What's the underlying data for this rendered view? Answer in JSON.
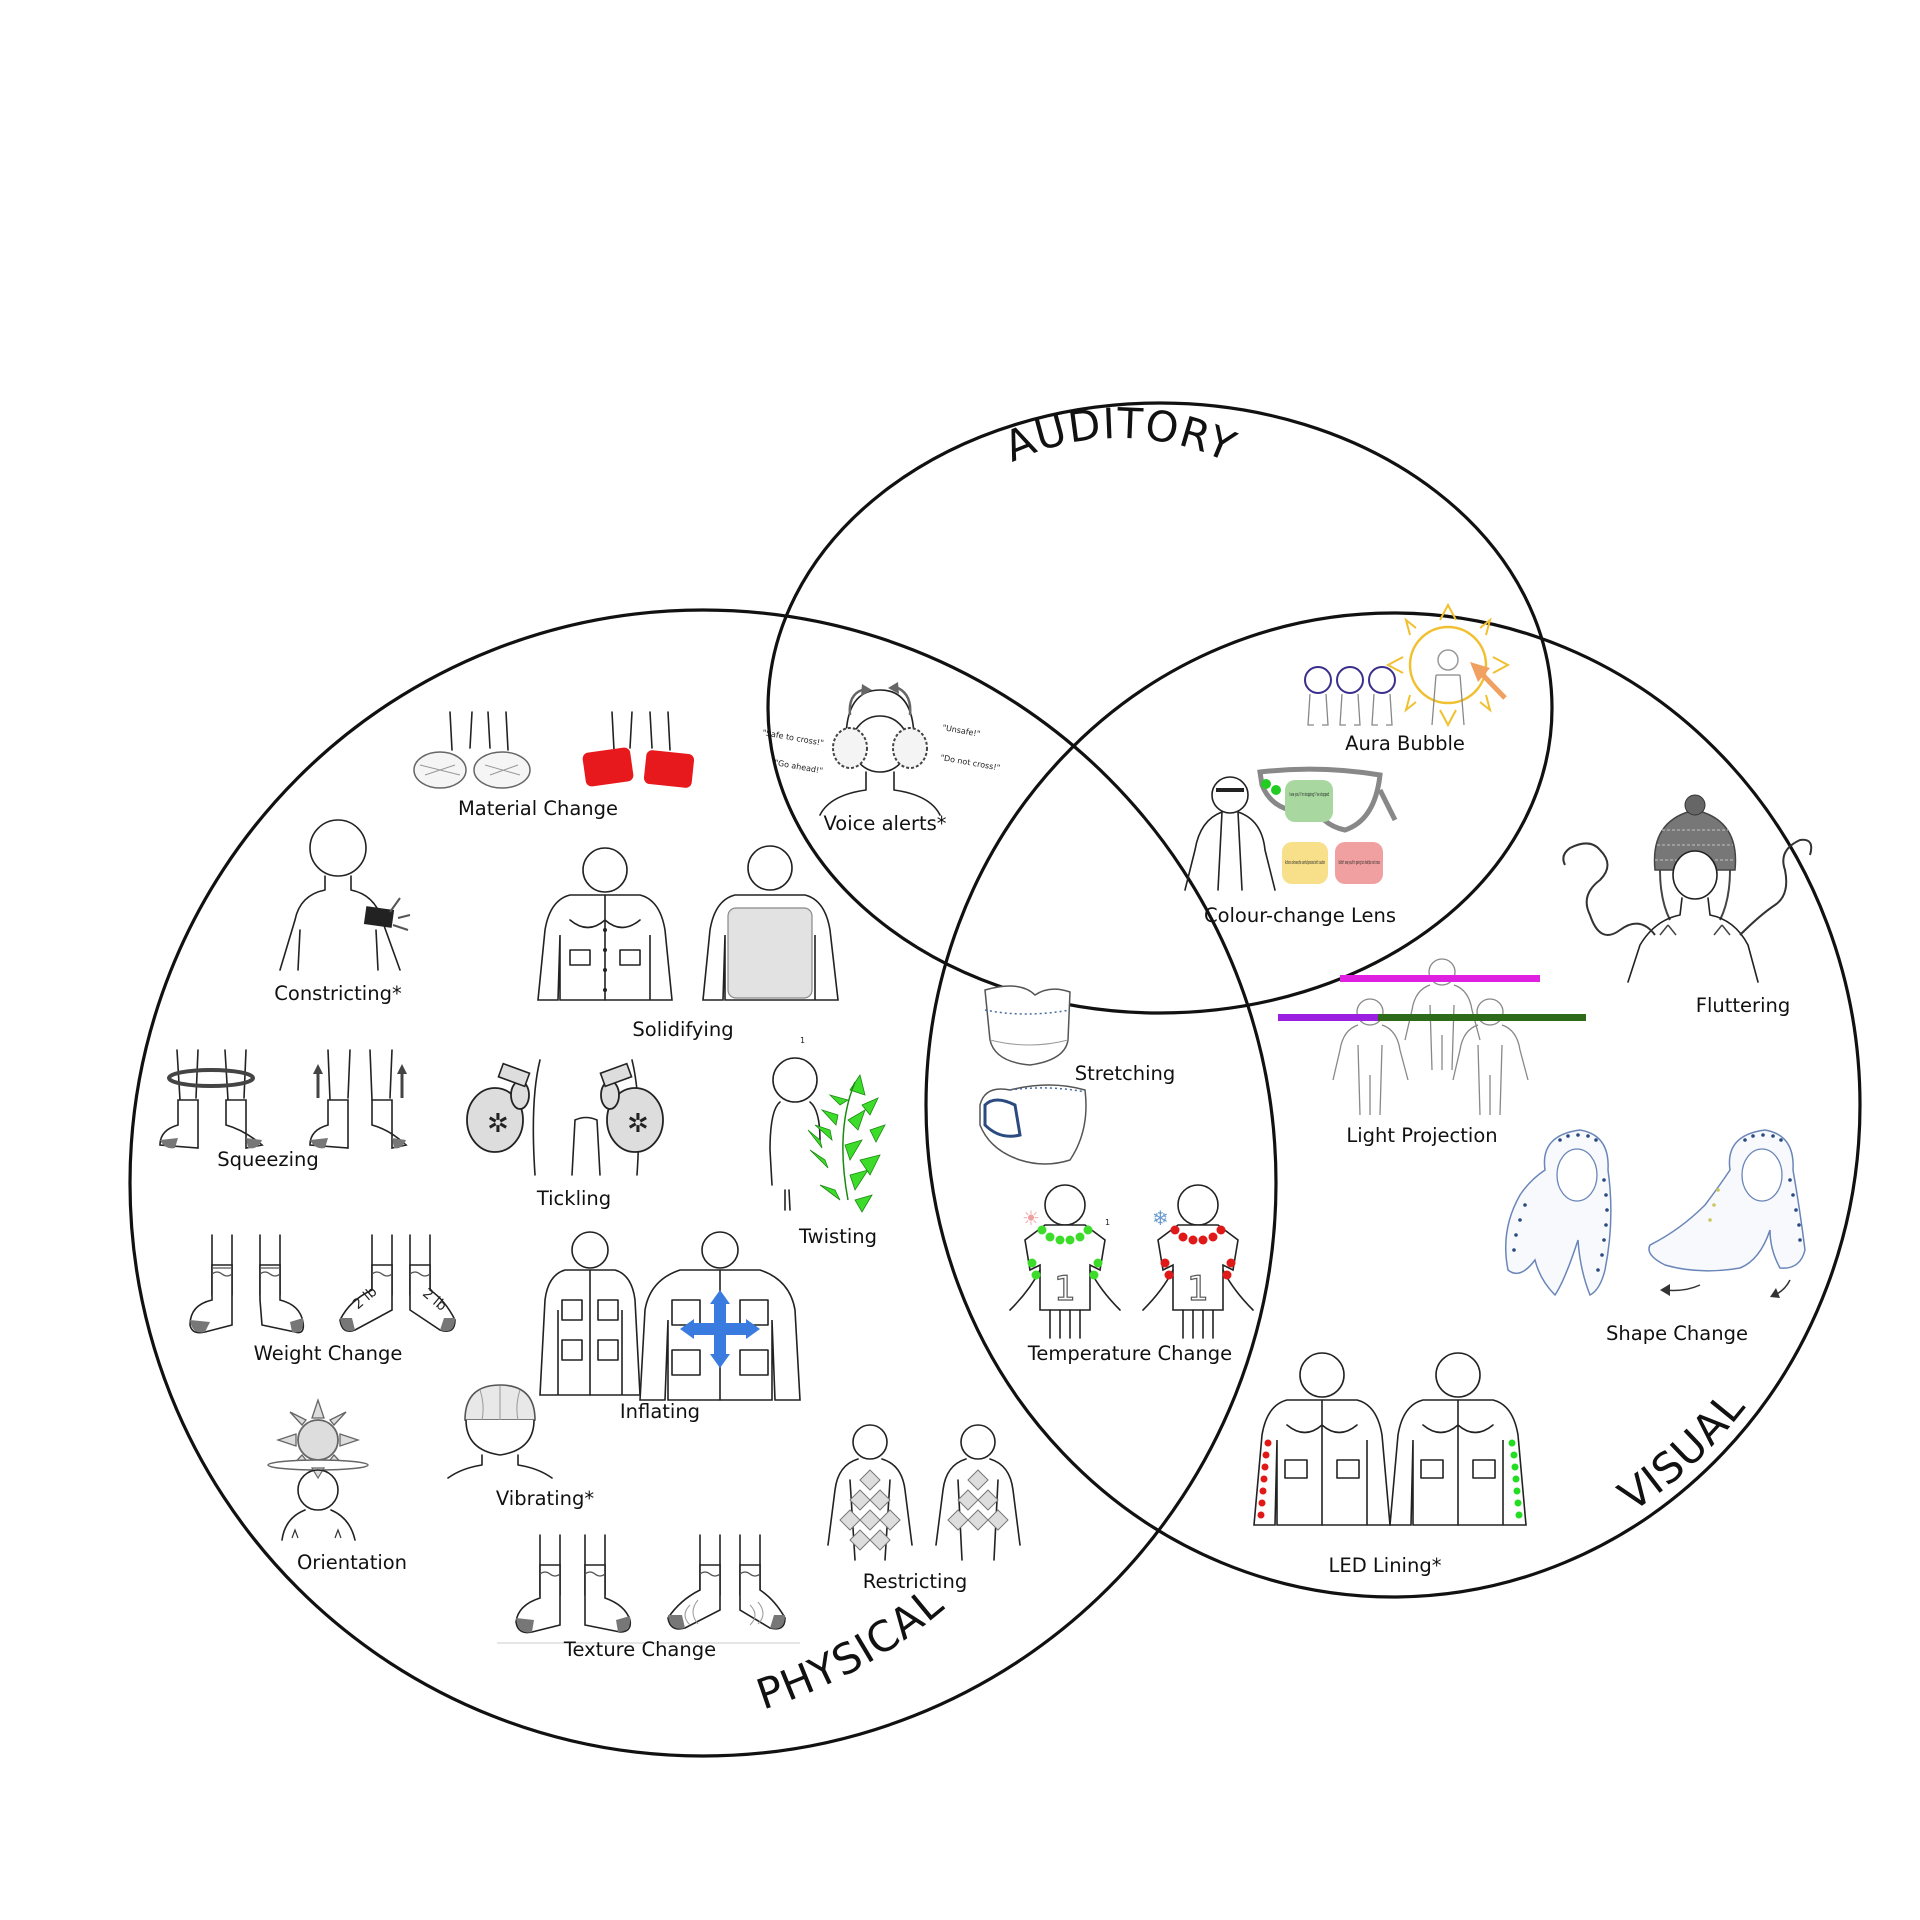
{
  "diagram": {
    "regions": {
      "auditory": "AUDITORY",
      "visual": "VISUAL",
      "physical": "PHYSICAL"
    },
    "items": {
      "voice_alerts": "Voice alerts*",
      "aura_bubble": "Aura Bubble",
      "colour_change_lens": "Colour-change Lens",
      "material_change": "Material Change",
      "constricting": "Constricting*",
      "solidifying": "Solidifying",
      "squeezing": "Squeezing",
      "tickling": "Tickling",
      "twisting": "Twisting",
      "weight_change": "Weight Change",
      "inflating": "Inflating",
      "orientation": "Orientation",
      "vibrating": "Vibrating*",
      "texture_change": "Texture Change",
      "restricting": "Restricting",
      "stretching": "Stretching",
      "temperature_change": "Temperature Change",
      "light_projection": "Light Projection",
      "fluttering": "Fluttering",
      "shape_change": "Shape Change",
      "led_lining": "LED Lining*"
    },
    "voice_bubbles": {
      "safe": "\"Safe to cross!\"",
      "go": "\"Go ahead!\"",
      "unsafe": "\"Unsafe!\"",
      "dont": "\"Do not cross!\""
    },
    "lens_notes": {
      "green": "I see you! I'm stopping! I've stopped",
      "yellow": "Actions unknown/be careful/proceed with caution",
      "red": "I didn't see you/I'm going too fast/do not cross"
    },
    "weights": {
      "left": "2 lb",
      "right": "2 lb"
    },
    "jersey_number": "1",
    "footnote_mark": "1"
  },
  "colors": {
    "material_red": "#e8191c",
    "twist_green": "#3ddc2b",
    "inflate_blue": "#3a7be0",
    "projection_magenta": "#e020e0",
    "projection_purple": "#9b1fe0",
    "projection_darkgreen": "#2d6a1a",
    "aura_yellow": "#f0c030",
    "aura_orange": "#f0a060",
    "aura_circle_purple": "#3a2f8a",
    "led_red": "#e01818",
    "led_green": "#22dd22",
    "note_green": "#a8d8a0",
    "note_yellow": "#f8e08a",
    "note_red": "#f0a0a0"
  }
}
